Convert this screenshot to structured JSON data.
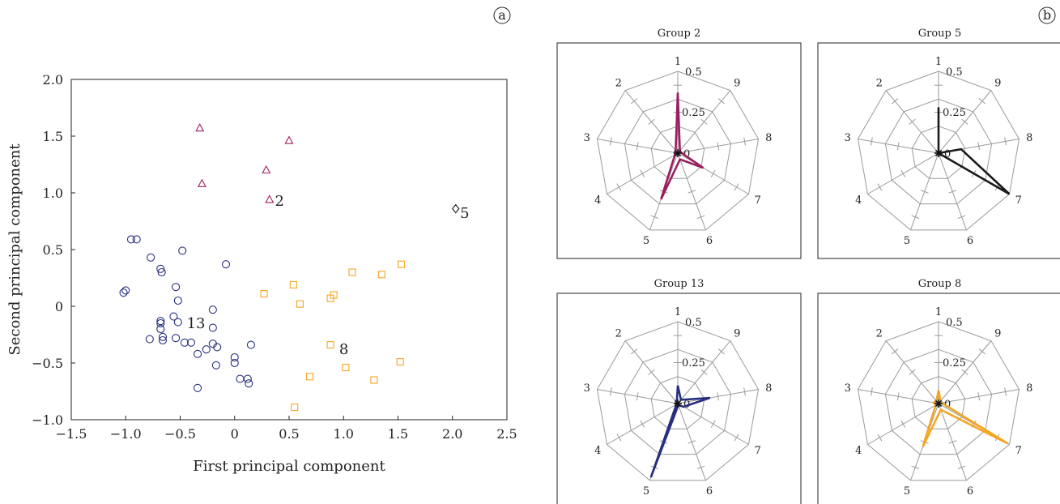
{
  "figure": {
    "panel_labels": [
      "a",
      "b"
    ]
  },
  "colors": {
    "group2": "#9b1f5f",
    "group5": "#1a1a1a",
    "group13": "#27307f",
    "group8": "#f5a623",
    "web": "#9a9a9a",
    "frame": "#222222"
  },
  "chart_data": [
    {
      "type": "scatter",
      "title": "",
      "xlabel": "First principal component",
      "ylabel": "Second principal component",
      "xlim": [
        -1.5,
        2.5
      ],
      "ylim": [
        -1.0,
        2.0
      ],
      "xticks": [
        -1.5,
        -1.0,
        -0.5,
        0,
        0.5,
        1.0,
        1.5,
        2.0,
        2.5
      ],
      "xtick_labels": [
        "−1.5",
        "−1.0",
        "−0.5",
        "0",
        "0.5",
        "1.0",
        "1.5",
        "2.0",
        "2.5"
      ],
      "yticks": [
        -1.0,
        -0.5,
        0,
        0.5,
        1.0,
        1.5,
        2.0
      ],
      "ytick_labels": [
        "−1.0",
        "−0.5",
        "0",
        "0.5",
        "1.0",
        "1.5",
        "2.0"
      ],
      "grid": false,
      "series": [
        {
          "label": "2",
          "marker": "triangle",
          "color_key": "group2",
          "points": [
            [
              -0.32,
              1.57
            ],
            [
              0.5,
              1.46
            ],
            [
              -0.3,
              1.08
            ],
            [
              0.29,
              1.2
            ],
            [
              0.32,
              0.94
            ]
          ],
          "label_at": [
            0.37,
            0.93
          ]
        },
        {
          "label": "5",
          "marker": "diamond",
          "color_key": "group5",
          "points": [
            [
              2.03,
              0.86
            ]
          ],
          "label_at": [
            2.07,
            0.82
          ]
        },
        {
          "label": "13",
          "marker": "circle",
          "color_key": "group13",
          "points": [
            [
              -0.95,
              0.59
            ],
            [
              -0.9,
              0.59
            ],
            [
              -0.77,
              0.43
            ],
            [
              -0.68,
              0.33
            ],
            [
              -0.67,
              0.3
            ],
            [
              -0.48,
              0.49
            ],
            [
              -1.0,
              0.14
            ],
            [
              -1.02,
              0.12
            ],
            [
              -0.54,
              0.17
            ],
            [
              -0.52,
              0.05
            ],
            [
              -0.08,
              0.37
            ],
            [
              -0.2,
              -0.03
            ],
            [
              -0.56,
              -0.09
            ],
            [
              -0.52,
              -0.14
            ],
            [
              -0.68,
              -0.13
            ],
            [
              -0.68,
              -0.15
            ],
            [
              -0.68,
              -0.2
            ],
            [
              -0.2,
              -0.19
            ],
            [
              -0.54,
              -0.28
            ],
            [
              -0.66,
              -0.27
            ],
            [
              -0.66,
              -0.3
            ],
            [
              -0.78,
              -0.29
            ],
            [
              -0.46,
              -0.32
            ],
            [
              -0.4,
              -0.32
            ],
            [
              -0.2,
              -0.33
            ],
            [
              -0.16,
              -0.36
            ],
            [
              0.15,
              -0.34
            ],
            [
              -0.26,
              -0.38
            ],
            [
              -0.34,
              -0.42
            ],
            [
              0.0,
              -0.45
            ],
            [
              0.0,
              -0.5
            ],
            [
              -0.17,
              -0.52
            ],
            [
              0.05,
              -0.64
            ],
            [
              0.12,
              -0.64
            ],
            [
              0.13,
              -0.68
            ],
            [
              -0.34,
              -0.72
            ]
          ],
          "label_at": [
            -0.44,
            -0.15
          ]
        },
        {
          "label": "8",
          "marker": "square",
          "color_key": "group8",
          "points": [
            [
              1.53,
              0.37
            ],
            [
              1.08,
              0.3
            ],
            [
              1.35,
              0.28
            ],
            [
              0.54,
              0.19
            ],
            [
              0.27,
              0.11
            ],
            [
              0.6,
              0.02
            ],
            [
              0.91,
              0.1
            ],
            [
              0.88,
              0.07
            ],
            [
              0.88,
              -0.34
            ],
            [
              1.02,
              -0.54
            ],
            [
              1.52,
              -0.49
            ],
            [
              0.69,
              -0.62
            ],
            [
              1.28,
              -0.65
            ],
            [
              0.55,
              -0.89
            ]
          ],
          "label_at": [
            0.96,
            -0.38
          ]
        }
      ]
    },
    {
      "type": "radar",
      "title": "Group 2",
      "axes": [
        "1",
        "9",
        "8",
        "7",
        "6",
        "5",
        "4",
        "3",
        "2"
      ],
      "ring_labels": [
        "0",
        "0.25",
        "0.5"
      ],
      "rmax": 0.5,
      "color_key": "group2",
      "values": [
        0.37,
        0.02,
        0.02,
        0.18,
        0.04,
        0.3,
        0.02,
        0.02,
        0.02
      ]
    },
    {
      "type": "radar",
      "title": "Group 5",
      "axes": [
        "1",
        "9",
        "8",
        "7",
        "6",
        "5",
        "4",
        "3",
        "2"
      ],
      "ring_labels": [
        "0",
        "0.25",
        "0.5"
      ],
      "rmax": 0.5,
      "color_key": "group5",
      "values": [
        0.28,
        0.0,
        0.14,
        0.5,
        0.0,
        0.0,
        0.0,
        0.0,
        0.0
      ]
    },
    {
      "type": "radar",
      "title": "Group 13",
      "axes": [
        "1",
        "9",
        "8",
        "7",
        "6",
        "5",
        "4",
        "3",
        "2"
      ],
      "ring_labels": [
        "0",
        "0.25",
        "0.5"
      ],
      "rmax": 0.5,
      "color_key": "group13",
      "values": [
        0.11,
        0.03,
        0.2,
        0.04,
        0.01,
        0.48,
        0.01,
        0.01,
        0.01
      ]
    },
    {
      "type": "radar",
      "title": "Group 8",
      "axes": [
        "1",
        "9",
        "8",
        "7",
        "6",
        "5",
        "4",
        "3",
        "2"
      ],
      "ring_labels": [
        "0",
        "0.25",
        "0.5"
      ],
      "rmax": 0.5,
      "color_key": "group8",
      "values": [
        0.08,
        0.02,
        0.02,
        0.49,
        0.04,
        0.28,
        0.02,
        0.03,
        0.02
      ]
    }
  ]
}
